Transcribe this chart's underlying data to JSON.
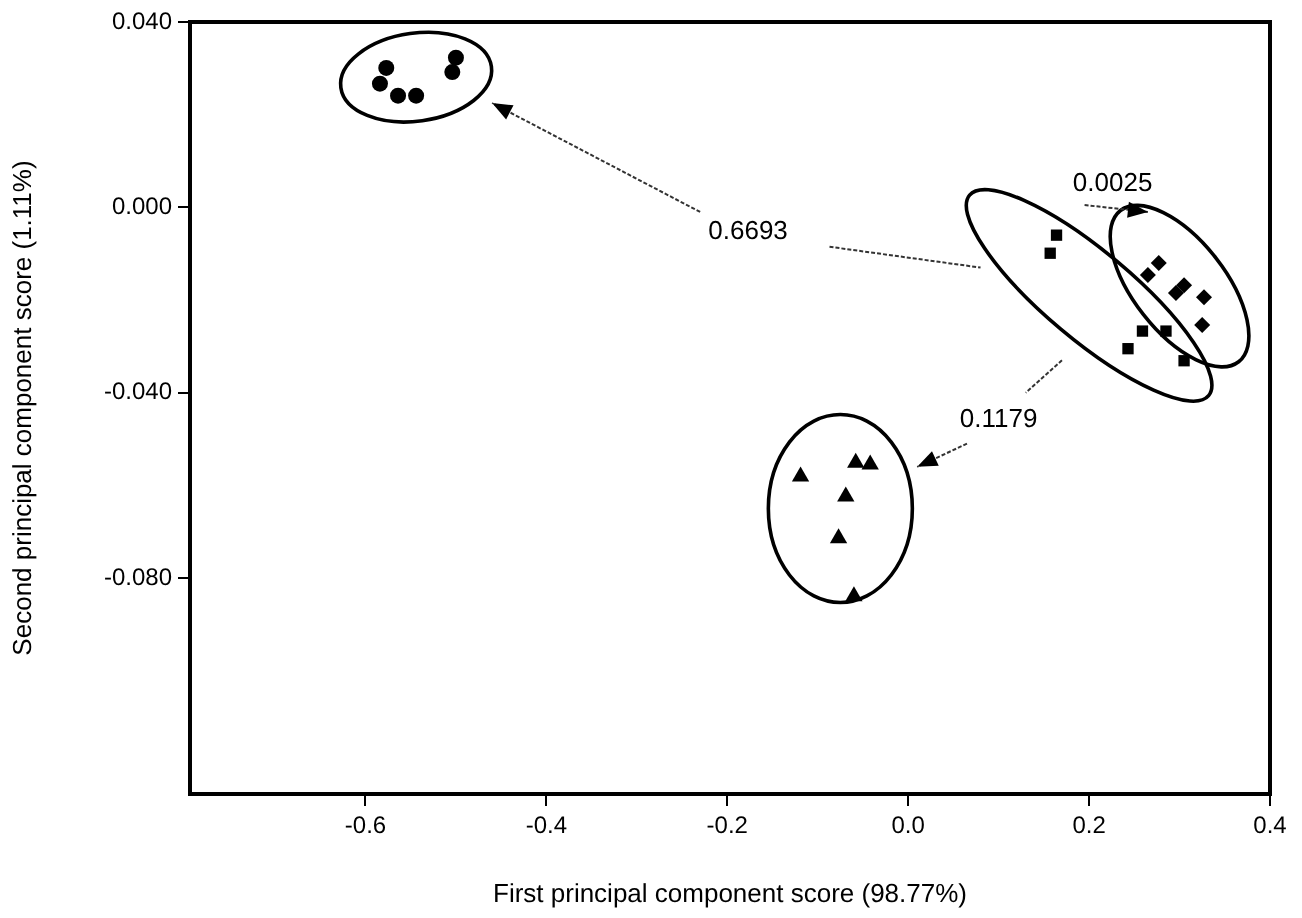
{
  "chart_data": {
    "type": "scatter",
    "xlabel": "First principal component score (98.77%)",
    "ylabel": "Second principal component score (1.11%)",
    "xlim": [
      -0.794,
      0.4
    ],
    "xticks": [
      -0.6,
      -0.4,
      -0.2,
      {
        "value": 0,
        "label": "0.0"
      },
      0.2,
      0.4
    ],
    "ylim": [
      -0.1266,
      0.04
    ],
    "yticks": [
      {
        "value": 0.04,
        "label": "0.040"
      },
      {
        "value": 0,
        "label": "0.000"
      },
      {
        "value": -0.04,
        "label": "-0.040"
      },
      {
        "value": -0.08,
        "label": "-0.080"
      }
    ],
    "grid": false,
    "legend": false,
    "series": [
      {
        "color": "#000000",
        "marker": "circle",
        "x": [
          -0.577,
          -0.584,
          -0.564,
          -0.544,
          -0.504,
          -0.5
        ],
        "values": [
          0.0301,
          0.0267,
          0.0241,
          0.0241,
          0.0292,
          0.0323
        ]
      },
      {
        "color": "#000000",
        "marker": "square",
        "x": [
          0.164,
          0.157,
          0.259,
          0.285,
          0.243,
          0.305
        ],
        "values": [
          -0.006,
          -0.0099,
          -0.0267,
          -0.0267,
          -0.0305,
          -0.0331
        ]
      },
      {
        "color": "#000000",
        "marker": "diamond",
        "x": [
          0.277,
          0.265,
          0.296,
          0.305,
          0.327,
          0.325
        ],
        "values": [
          -0.012,
          -0.0146,
          -0.0185,
          -0.0168,
          -0.0194,
          -0.0254
        ]
      },
      {
        "color": "#000000",
        "marker": "triangle",
        "x": [
          -0.119,
          -0.058,
          -0.042,
          -0.069,
          -0.077,
          -0.06
        ],
        "values": [
          -0.0581,
          -0.0551,
          -0.0555,
          -0.0624,
          -0.0714,
          -0.0839
        ]
      }
    ],
    "annotations": [
      "0.6693",
      "0.0025",
      "0.1179"
    ]
  }
}
